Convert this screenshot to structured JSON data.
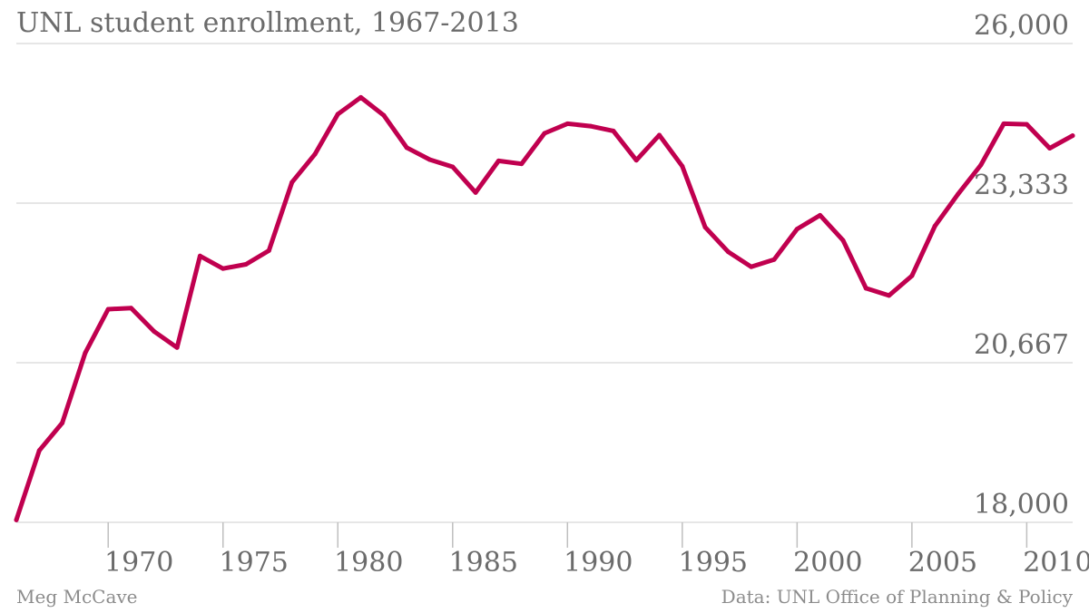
{
  "title": "UNL student enrollment, 1967-2013",
  "footer": {
    "author": "Meg McCave",
    "source": "Data: UNL Office of Planning & Policy"
  },
  "colors": {
    "line": "#c0004f",
    "grid": "#dedede",
    "text": "#6b6b6b",
    "axis": "#bfbfbf"
  },
  "chart_data": {
    "type": "line",
    "title": "UNL student enrollment, 1967-2013",
    "xlabel": "",
    "ylabel": "",
    "x": [
      1966,
      1967,
      1968,
      1969,
      1970,
      1971,
      1972,
      1973,
      1974,
      1975,
      1976,
      1977,
      1978,
      1979,
      1980,
      1981,
      1982,
      1983,
      1984,
      1985,
      1986,
      1987,
      1988,
      1989,
      1990,
      1991,
      1992,
      1993,
      1994,
      1995,
      1996,
      1997,
      1998,
      1999,
      2000,
      2001,
      2002,
      2003,
      2004,
      2005,
      2006,
      2007,
      2008,
      2009,
      2010,
      2011,
      2012
    ],
    "series": [
      {
        "values": [
          18040,
          19200,
          19660,
          20830,
          21560,
          21580,
          21190,
          20920,
          22450,
          22240,
          22310,
          22540,
          23680,
          24150,
          24820,
          25100,
          24800,
          24260,
          24060,
          23940,
          23510,
          24040,
          23990,
          24500,
          24660,
          24620,
          24540,
          24050,
          24470,
          23950,
          22930,
          22520,
          22270,
          22390,
          22900,
          23130,
          22710,
          21910,
          21790,
          22120,
          22950,
          23480,
          23970,
          24660,
          24650,
          24250,
          24460
        ]
      }
    ],
    "ylim": [
      18000,
      26000
    ],
    "yticks": [
      "18,000",
      "20,667",
      "23,333",
      "26,000"
    ],
    "ytick_values": [
      18000,
      20666.67,
      23333.33,
      26000
    ],
    "xticks": [
      1970,
      1975,
      1980,
      1985,
      1990,
      1995,
      2000,
      2005,
      2010
    ],
    "xtick_labels": [
      "1970",
      "1975",
      "1980",
      "1985",
      "1990",
      "1995",
      "2000",
      "2005",
      "2010"
    ],
    "grid": true
  }
}
